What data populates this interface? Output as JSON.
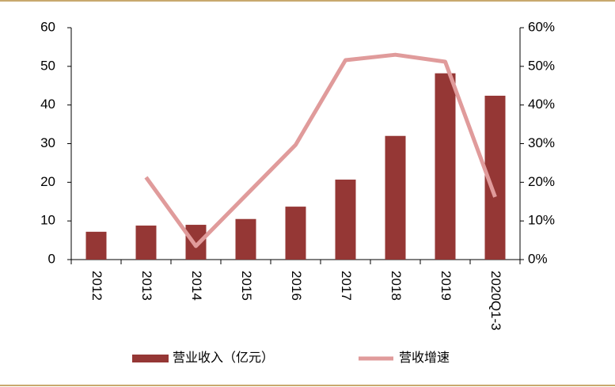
{
  "chart_data": {
    "type": "bar_line",
    "categories": [
      "2012",
      "2013",
      "2014",
      "2015",
      "2016",
      "2017",
      "2018",
      "2019",
      "2020Q1-3"
    ],
    "series": [
      {
        "name": "营业收入（亿元）",
        "type": "bar",
        "color": "#953735",
        "values": [
          7.2,
          8.8,
          9.0,
          10.5,
          13.7,
          20.7,
          32.0,
          48.2,
          42.4
        ]
      },
      {
        "name": "营收增速",
        "type": "line",
        "axis": "y2",
        "color": "#e09b9b",
        "values": [
          null,
          21.3,
          3.5,
          16.6,
          29.7,
          51.6,
          53.0,
          51.2,
          16.2
        ]
      }
    ],
    "ylim": [
      0,
      60
    ],
    "yticks": [
      0,
      10,
      20,
      30,
      40,
      50,
      60
    ],
    "y2lim": [
      0,
      60
    ],
    "y2ticks": [
      {
        "value": 0,
        "label": "0%"
      },
      {
        "value": 10,
        "label": "10%"
      },
      {
        "value": 20,
        "label": "20%"
      },
      {
        "value": 30,
        "label": "30%"
      },
      {
        "value": 40,
        "label": "40%"
      },
      {
        "value": 50,
        "label": "50%"
      },
      {
        "value": 60,
        "label": "60%"
      }
    ],
    "grid": false,
    "legend": "bottom"
  }
}
